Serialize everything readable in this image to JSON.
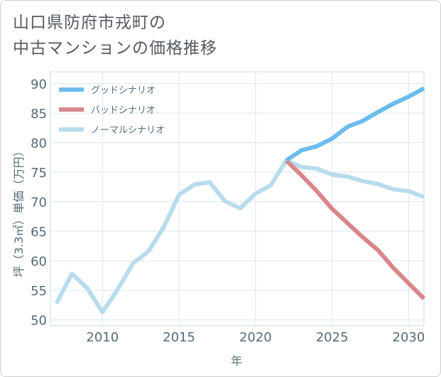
{
  "title_lines": [
    "山口県防府市戎町の",
    "中古マンションの価格推移"
  ],
  "chart_data": {
    "type": "line",
    "xlabel": "年",
    "ylabel": "坪（3.3㎡）単価（万円）",
    "xlim": [
      2006.6,
      2031
    ],
    "ylim": [
      49,
      92
    ],
    "xticks": [
      2010,
      2015,
      2020,
      2025,
      2030
    ],
    "yticks": [
      50,
      55,
      60,
      65,
      70,
      75,
      80,
      85,
      90
    ],
    "grid": true,
    "legend_position": "top-left",
    "series": [
      {
        "name": "グッドシナリオ",
        "color": "#6cbcee",
        "x": [
          2022,
          2023,
          2024,
          2025,
          2026,
          2027,
          2028,
          2029,
          2030,
          2031
        ],
        "y": [
          77.0,
          78.7,
          79.4,
          80.7,
          82.7,
          83.7,
          85.2,
          86.6,
          87.8,
          89.2
        ]
      },
      {
        "name": "バッドシナリオ",
        "color": "#d9868b",
        "x": [
          2022,
          2023,
          2024,
          2025,
          2026,
          2027,
          2028,
          2029,
          2030,
          2031
        ],
        "y": [
          77.0,
          74.5,
          71.8,
          68.8,
          66.4,
          64.0,
          61.8,
          58.8,
          56.2,
          53.6
        ]
      },
      {
        "name": "ノーマルシナリオ",
        "color": "#b8dceb",
        "x": [
          2007,
          2008,
          2009,
          2010,
          2011,
          2012,
          2013,
          2014,
          2015,
          2016,
          2017,
          2018,
          2019,
          2020,
          2021,
          2022,
          2023,
          2024,
          2025,
          2026,
          2027,
          2028,
          2029,
          2030,
          2031
        ],
        "y": [
          52.8,
          57.8,
          55.4,
          51.3,
          55.2,
          59.6,
          61.6,
          65.7,
          71.2,
          72.9,
          73.3,
          70.1,
          68.9,
          71.4,
          72.8,
          77.0,
          75.9,
          75.6,
          74.6,
          74.3,
          73.5,
          73.0,
          72.1,
          71.8,
          70.8
        ]
      }
    ]
  }
}
